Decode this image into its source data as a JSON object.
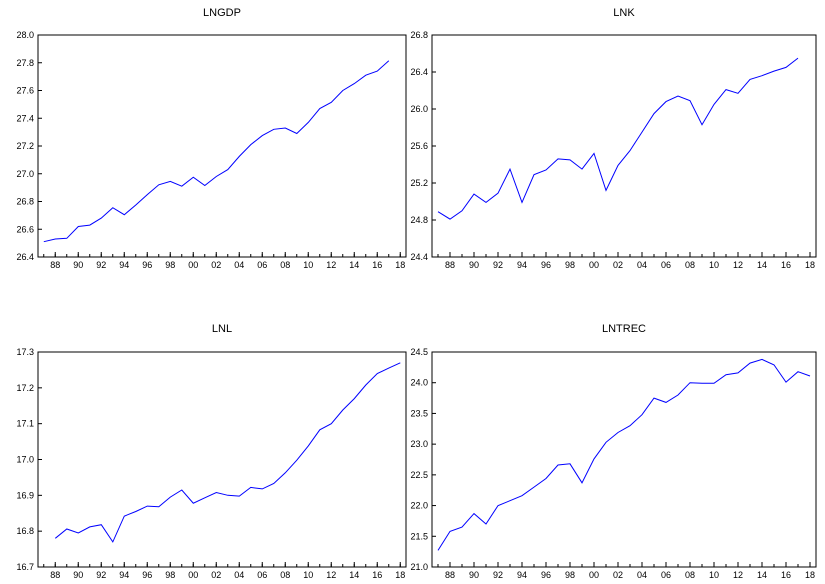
{
  "chart_data": [
    {
      "type": "line",
      "title": "LNGDP",
      "x": [
        1987,
        1988,
        1989,
        1990,
        1991,
        1992,
        1993,
        1994,
        1995,
        1996,
        1997,
        1998,
        1999,
        2000,
        2001,
        2002,
        2003,
        2004,
        2005,
        2006,
        2007,
        2008,
        2009,
        2010,
        2011,
        2012,
        2013,
        2014,
        2015,
        2016,
        2017
      ],
      "series": [
        {
          "values": [
            26.51,
            26.53,
            26.535,
            26.62,
            26.63,
            26.68,
            26.755,
            26.705,
            26.775,
            26.85,
            26.92,
            26.945,
            26.91,
            26.975,
            26.915,
            26.98,
            27.03,
            27.125,
            27.21,
            27.275,
            27.32,
            27.33,
            27.29,
            27.37,
            27.47,
            27.515,
            27.6,
            27.65,
            27.71,
            27.74,
            27.815
          ]
        }
      ],
      "ylim": [
        26.4,
        28.0
      ],
      "yticks": [
        "26.4",
        "26.6",
        "26.8",
        "27.0",
        "27.2",
        "27.4",
        "27.6",
        "27.8",
        "28.0"
      ],
      "xlim": [
        1986.5,
        2018.5
      ],
      "xtick_labels": [
        "88",
        "90",
        "92",
        "94",
        "96",
        "98",
        "00",
        "02",
        "04",
        "06",
        "08",
        "10",
        "12",
        "14",
        "16",
        "18"
      ],
      "xtick_years": [
        1988,
        1990,
        1992,
        1994,
        1996,
        1998,
        2000,
        2002,
        2004,
        2006,
        2008,
        2010,
        2012,
        2014,
        2016,
        2018
      ],
      "line_color": "#0000ff"
    },
    {
      "type": "line",
      "title": "LNK",
      "x": [
        1987,
        1988,
        1989,
        1990,
        1991,
        1992,
        1993,
        1994,
        1995,
        1996,
        1997,
        1998,
        1999,
        2000,
        2001,
        2002,
        2003,
        2004,
        2005,
        2006,
        2007,
        2008,
        2009,
        2010,
        2011,
        2012,
        2013,
        2014,
        2015,
        2016,
        2017
      ],
      "series": [
        {
          "values": [
            24.89,
            24.81,
            24.9,
            25.08,
            24.99,
            25.09,
            25.35,
            24.99,
            25.29,
            25.34,
            25.46,
            25.45,
            25.35,
            25.52,
            25.12,
            25.39,
            25.55,
            25.75,
            25.95,
            26.08,
            26.14,
            26.09,
            25.83,
            26.05,
            26.21,
            26.17,
            26.32,
            26.36,
            26.41,
            26.45,
            26.55
          ]
        }
      ],
      "ylim": [
        24.4,
        26.8
      ],
      "yticks": [
        "24.4",
        "24.8",
        "25.2",
        "25.6",
        "26.0",
        "26.4",
        "26.8"
      ],
      "xlim": [
        1986.5,
        2018.5
      ],
      "xtick_labels": [
        "88",
        "90",
        "92",
        "94",
        "96",
        "98",
        "00",
        "02",
        "04",
        "06",
        "08",
        "10",
        "12",
        "14",
        "16",
        "18"
      ],
      "xtick_years": [
        1988,
        1990,
        1992,
        1994,
        1996,
        1998,
        2000,
        2002,
        2004,
        2006,
        2008,
        2010,
        2012,
        2014,
        2016,
        2018
      ],
      "line_color": "#0000ff"
    },
    {
      "type": "line",
      "title": "LNL",
      "x": [
        1988,
        1989,
        1990,
        1991,
        1992,
        1993,
        1994,
        1995,
        1996,
        1997,
        1998,
        1999,
        2000,
        2001,
        2002,
        2003,
        2004,
        2005,
        2006,
        2007,
        2008,
        2009,
        2010,
        2011,
        2012,
        2013,
        2014,
        2015,
        2016,
        2017,
        2018
      ],
      "series": [
        {
          "values": [
            16.78,
            16.806,
            16.795,
            16.812,
            16.818,
            16.77,
            16.842,
            16.855,
            16.87,
            16.868,
            16.895,
            16.915,
            16.878,
            16.893,
            16.908,
            16.9,
            16.898,
            16.922,
            16.918,
            16.933,
            16.963,
            16.998,
            17.038,
            17.083,
            17.1,
            17.138,
            17.17,
            17.208,
            17.24,
            17.255,
            17.27
          ]
        }
      ],
      "ylim": [
        16.7,
        17.3
      ],
      "yticks": [
        "16.7",
        "16.8",
        "16.9",
        "17.0",
        "17.1",
        "17.2",
        "17.3"
      ],
      "xlim": [
        1986.5,
        2018.5
      ],
      "xtick_labels": [
        "88",
        "90",
        "92",
        "94",
        "96",
        "98",
        "00",
        "02",
        "04",
        "06",
        "08",
        "10",
        "12",
        "14",
        "16",
        "18"
      ],
      "xtick_years": [
        1988,
        1990,
        1992,
        1994,
        1996,
        1998,
        2000,
        2002,
        2004,
        2006,
        2008,
        2010,
        2012,
        2014,
        2016,
        2018
      ],
      "line_color": "#0000ff"
    },
    {
      "type": "line",
      "title": "LNTREC",
      "x": [
        1987,
        1988,
        1989,
        1990,
        1991,
        1992,
        1993,
        1994,
        1995,
        1996,
        1997,
        1998,
        1999,
        2000,
        2001,
        2002,
        2003,
        2004,
        2005,
        2006,
        2007,
        2008,
        2009,
        2010,
        2011,
        2012,
        2013,
        2014,
        2015,
        2016,
        2017,
        2018
      ],
      "series": [
        {
          "values": [
            21.27,
            21.58,
            21.65,
            21.87,
            21.7,
            22.0,
            22.08,
            22.16,
            22.3,
            22.44,
            22.66,
            22.68,
            22.37,
            22.76,
            23.03,
            23.19,
            23.3,
            23.48,
            23.75,
            23.68,
            23.8,
            24.0,
            23.99,
            23.99,
            24.13,
            24.16,
            24.32,
            24.38,
            24.29,
            24.01,
            24.18,
            24.11
          ]
        }
      ],
      "ylim": [
        21.0,
        24.5
      ],
      "yticks": [
        "21.0",
        "21.5",
        "22.0",
        "22.5",
        "23.0",
        "23.5",
        "24.0",
        "24.5"
      ],
      "xlim": [
        1986.5,
        2018.5
      ],
      "xtick_labels": [
        "88",
        "90",
        "92",
        "94",
        "96",
        "98",
        "00",
        "02",
        "04",
        "06",
        "08",
        "10",
        "12",
        "14",
        "16",
        "18"
      ],
      "xtick_years": [
        1988,
        1990,
        1992,
        1994,
        1996,
        1998,
        2000,
        2002,
        2004,
        2006,
        2008,
        2010,
        2012,
        2014,
        2016,
        2018
      ],
      "line_color": "#0000ff"
    }
  ]
}
